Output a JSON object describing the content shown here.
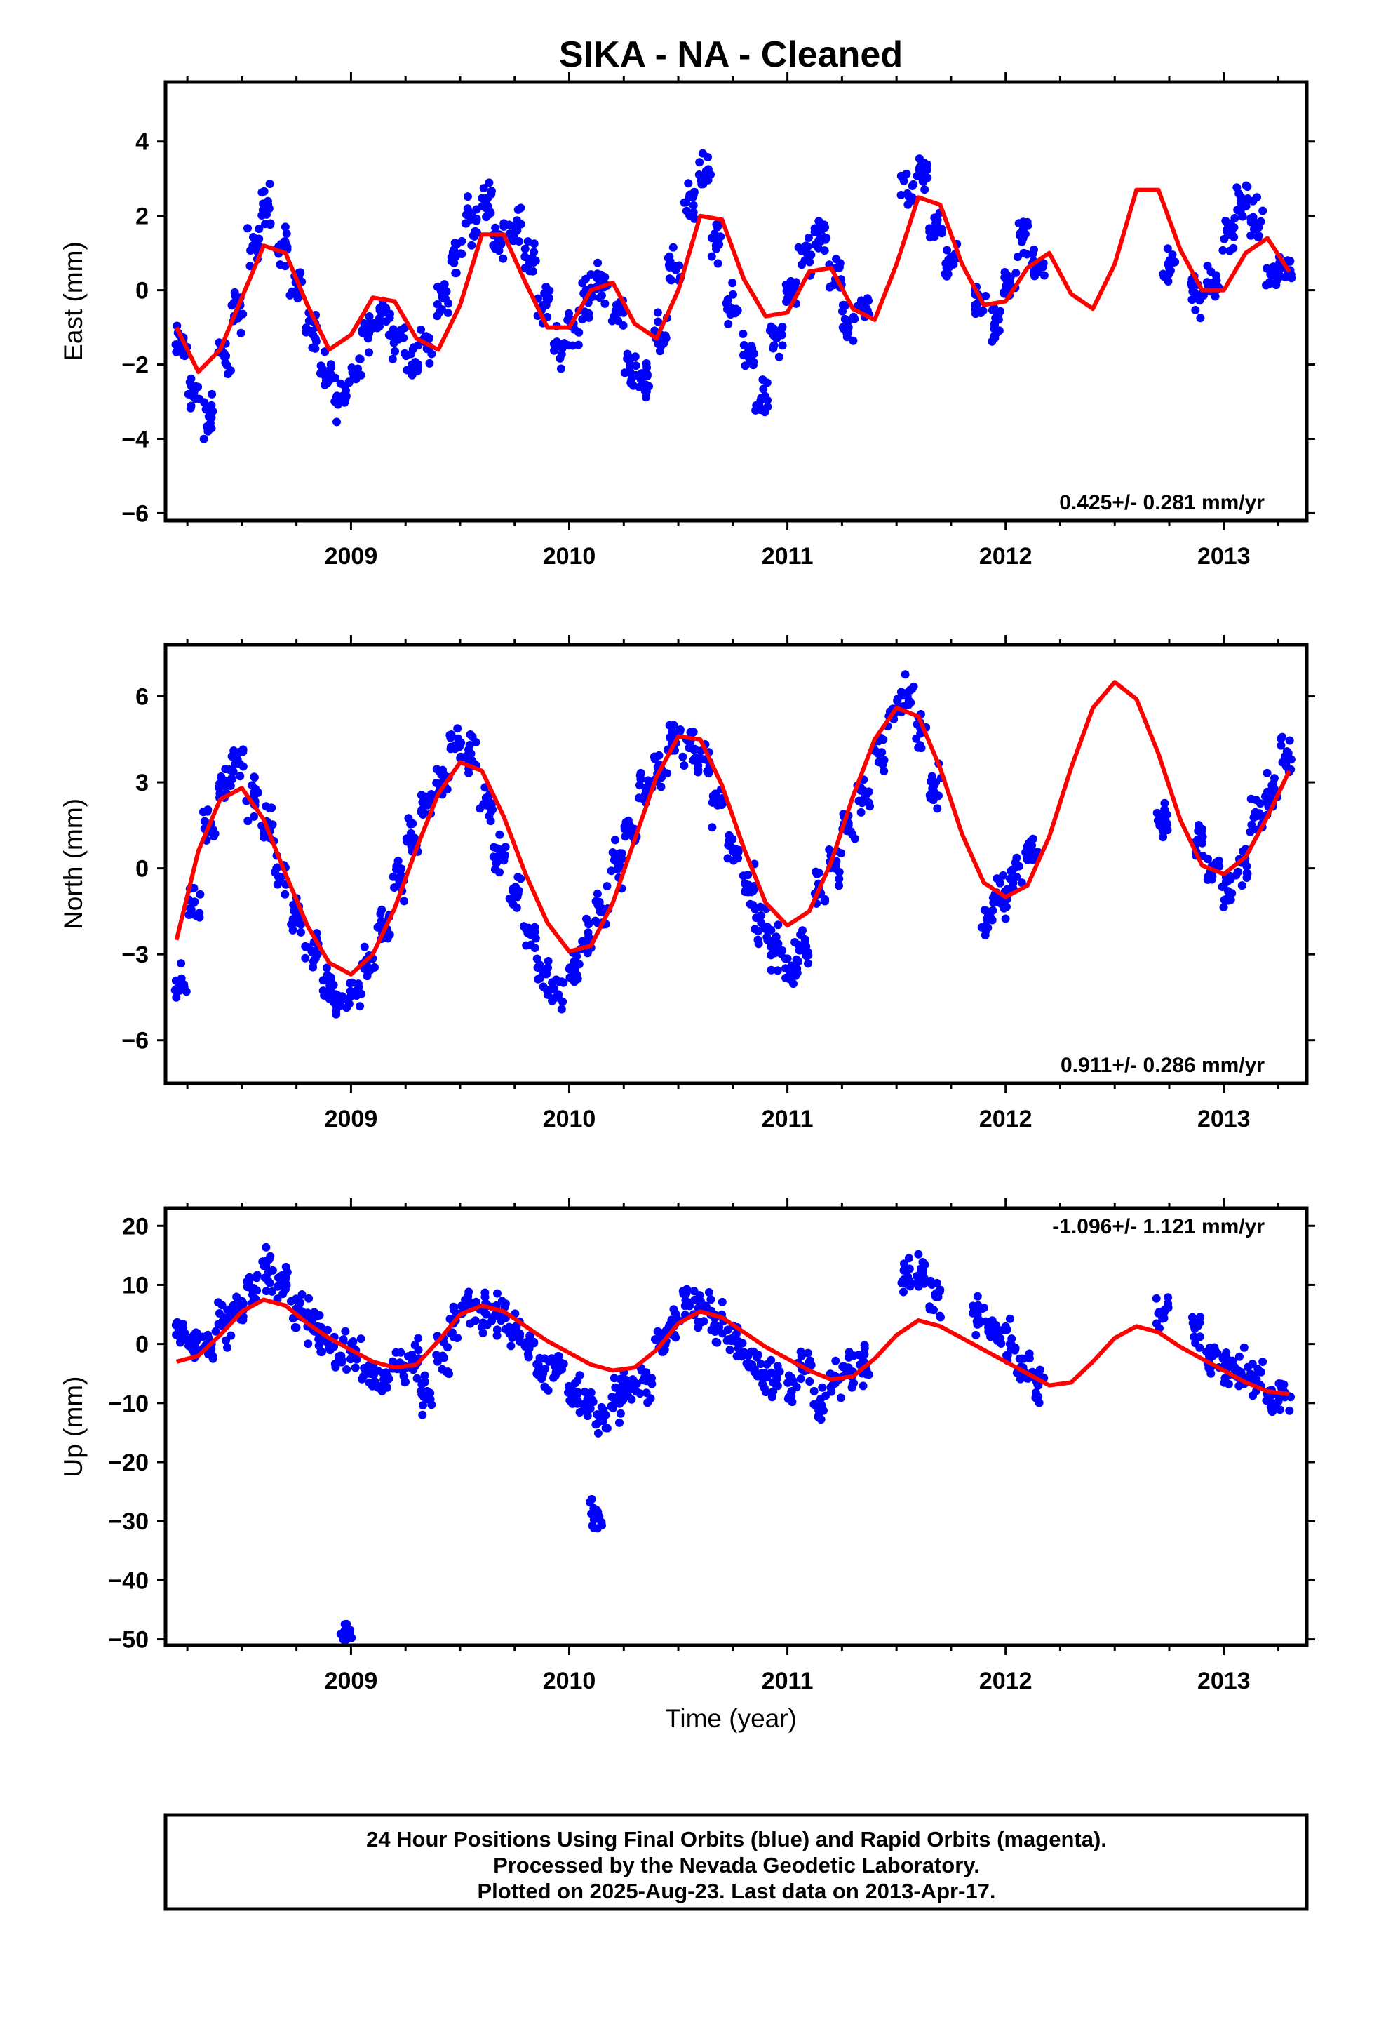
{
  "title": "SIKA  - NA - Cleaned",
  "xlabel": "Time (year)",
  "footer": [
    "24 Hour Positions Using Final Orbits (blue) and Rapid Orbits (magenta).",
    "Processed by the Nevada Geodetic Laboratory.",
    "Plotted on 2025-Aug-23. Last data on 2013-Apr-17."
  ],
  "colors": {
    "points": "#0000ff",
    "model": "#ff0000",
    "frame": "#000000"
  },
  "chart_data": [
    {
      "type": "scatter",
      "ylabel": "East (mm)",
      "rate_text": "0.425+/- 0.281 mm/yr",
      "xlim": [
        2008.15,
        2013.38
      ],
      "ylim": [
        -6.2,
        5.6
      ],
      "yticks": [
        -6,
        -4,
        -2,
        0,
        2,
        4
      ],
      "xticks": [
        2009,
        2010,
        2011,
        2012,
        2013
      ],
      "series": [
        {
          "kind": "points",
          "x": [
            2008.22,
            2008.28,
            2008.35,
            2008.42,
            2008.48,
            2008.55,
            2008.62,
            2008.68,
            2008.75,
            2008.82,
            2008.88,
            2008.95,
            2009.02,
            2009.08,
            2009.15,
            2009.22,
            2009.28,
            2009.35,
            2009.42,
            2009.48,
            2009.55,
            2009.62,
            2009.68,
            2009.75,
            2009.82,
            2009.88,
            2009.95,
            2010.02,
            2010.08,
            2010.15,
            2010.22,
            2010.28,
            2010.35,
            2010.42,
            2010.48,
            2010.55,
            2010.62,
            2010.68,
            2010.75,
            2010.82,
            2010.88,
            2010.95,
            2011.02,
            2011.08,
            2011.15,
            2011.22,
            2011.28,
            2011.35,
            2011.55,
            2011.62,
            2011.68,
            2011.75,
            2011.88,
            2011.95,
            2012.02,
            2012.08,
            2012.15,
            2012.75,
            2012.88,
            2012.95,
            2013.02,
            2013.08,
            2013.15,
            2013.22,
            2013.28
          ],
          "y": [
            -1.5,
            -2.8,
            -3.4,
            -1.8,
            -0.6,
            1.2,
            2.3,
            1.2,
            0.2,
            -1.1,
            -2.3,
            -2.9,
            -2.2,
            -1.0,
            -0.6,
            -1.3,
            -2.0,
            -1.5,
            -0.2,
            0.9,
            1.9,
            2.4,
            1.5,
            1.7,
            0.8,
            -0.4,
            -1.5,
            -0.9,
            -0.2,
            0.2,
            -0.6,
            -2.0,
            -2.6,
            -1.2,
            0.6,
            2.5,
            3.1,
            1.3,
            -0.5,
            -1.7,
            -2.9,
            -1.3,
            -0.2,
            0.8,
            1.5,
            0.3,
            -1.0,
            -0.4,
            2.6,
            3.0,
            1.8,
            0.7,
            -0.3,
            -0.9,
            0.2,
            1.4,
            0.7,
            0.6,
            -0.2,
            0.2,
            1.5,
            2.4,
            1.8,
            0.4,
            0.6
          ]
        },
        {
          "kind": "model",
          "x": [
            2008.2,
            2008.3,
            2008.4,
            2008.5,
            2008.6,
            2008.7,
            2008.8,
            2008.9,
            2009.0,
            2009.1,
            2009.2,
            2009.3,
            2009.4,
            2009.5,
            2009.6,
            2009.7,
            2009.8,
            2009.9,
            2010.0,
            2010.1,
            2010.2,
            2010.3,
            2010.4,
            2010.5,
            2010.6,
            2010.7,
            2010.8,
            2010.9,
            2011.0,
            2011.1,
            2011.2,
            2011.3,
            2011.4,
            2011.5,
            2011.6,
            2011.7,
            2011.8,
            2011.9,
            2012.0,
            2012.1,
            2012.2,
            2012.3,
            2012.4,
            2012.5,
            2012.6,
            2012.7,
            2012.8,
            2012.9,
            2013.0,
            2013.1,
            2013.2,
            2013.3
          ],
          "y": [
            -1.0,
            -2.2,
            -1.6,
            -0.2,
            1.2,
            1.0,
            -0.4,
            -1.6,
            -1.2,
            -0.2,
            -0.3,
            -1.3,
            -1.6,
            -0.4,
            1.5,
            1.5,
            0.2,
            -1.0,
            -1.0,
            0.0,
            0.2,
            -0.9,
            -1.3,
            0.0,
            2.0,
            1.9,
            0.3,
            -0.7,
            -0.6,
            0.5,
            0.6,
            -0.5,
            -0.8,
            0.7,
            2.5,
            2.3,
            0.7,
            -0.4,
            -0.3,
            0.6,
            1.0,
            -0.1,
            -0.5,
            0.7,
            2.7,
            2.7,
            1.1,
            0.0,
            0.0,
            1.0,
            1.4,
            0.5
          ]
        }
      ]
    },
    {
      "type": "scatter",
      "ylabel": "North (mm)",
      "rate_text": "0.911+/- 0.286 mm/yr",
      "xlim": [
        2008.15,
        2013.38
      ],
      "ylim": [
        -7.5,
        7.8
      ],
      "yticks": [
        -6,
        -3,
        0,
        3,
        6
      ],
      "xticks": [
        2009,
        2010,
        2011,
        2012,
        2013
      ],
      "series": [
        {
          "kind": "points",
          "x": [
            2008.22,
            2008.28,
            2008.35,
            2008.42,
            2008.48,
            2008.55,
            2008.62,
            2008.68,
            2008.75,
            2008.82,
            2008.88,
            2008.95,
            2009.02,
            2009.08,
            2009.15,
            2009.22,
            2009.28,
            2009.35,
            2009.42,
            2009.48,
            2009.55,
            2009.62,
            2009.68,
            2009.75,
            2009.82,
            2009.88,
            2009.95,
            2010.02,
            2010.08,
            2010.15,
            2010.22,
            2010.28,
            2010.35,
            2010.42,
            2010.48,
            2010.55,
            2010.62,
            2010.68,
            2010.75,
            2010.82,
            2010.88,
            2010.95,
            2011.02,
            2011.08,
            2011.15,
            2011.22,
            2011.28,
            2011.35,
            2011.42,
            2011.48,
            2011.55,
            2011.62,
            2011.68,
            2011.92,
            2011.98,
            2012.05,
            2012.12,
            2012.72,
            2012.88,
            2012.95,
            2013.02,
            2013.08,
            2013.15,
            2013.22,
            2013.28
          ],
          "y": [
            -4.2,
            -1.2,
            1.5,
            3.0,
            3.8,
            2.4,
            1.5,
            -0.3,
            -1.6,
            -2.9,
            -3.9,
            -4.5,
            -4.3,
            -3.2,
            -1.9,
            -0.4,
            1.0,
            2.2,
            3.0,
            4.3,
            4.0,
            2.2,
            0.4,
            -0.8,
            -2.3,
            -3.6,
            -4.4,
            -3.5,
            -2.6,
            -1.4,
            0.2,
            1.3,
            2.8,
            3.5,
            4.6,
            4.2,
            3.8,
            2.2,
            0.6,
            -0.7,
            -1.9,
            -2.8,
            -3.4,
            -2.7,
            -0.9,
            0.0,
            1.5,
            2.7,
            4.0,
            5.4,
            6.0,
            4.8,
            3.0,
            -1.6,
            -1.0,
            -0.3,
            0.8,
            1.8,
            1.0,
            0.0,
            -0.8,
            0.2,
            1.9,
            2.6,
            3.9
          ]
        },
        {
          "kind": "model",
          "x": [
            2008.2,
            2008.3,
            2008.4,
            2008.5,
            2008.6,
            2008.7,
            2008.8,
            2008.9,
            2009.0,
            2009.1,
            2009.2,
            2009.3,
            2009.4,
            2009.5,
            2009.6,
            2009.7,
            2009.8,
            2009.9,
            2010.0,
            2010.1,
            2010.2,
            2010.3,
            2010.4,
            2010.5,
            2010.6,
            2010.7,
            2010.8,
            2010.9,
            2011.0,
            2011.1,
            2011.2,
            2011.3,
            2011.4,
            2011.5,
            2011.6,
            2011.7,
            2011.8,
            2011.9,
            2012.0,
            2012.1,
            2012.2,
            2012.3,
            2012.4,
            2012.5,
            2012.6,
            2012.7,
            2012.8,
            2012.9,
            2013.0,
            2013.1,
            2013.2,
            2013.3
          ],
          "y": [
            -2.5,
            0.6,
            2.4,
            2.8,
            1.7,
            -0.2,
            -2.0,
            -3.3,
            -3.7,
            -3.0,
            -1.4,
            0.7,
            2.6,
            3.7,
            3.4,
            1.8,
            -0.2,
            -1.9,
            -2.9,
            -2.7,
            -1.2,
            1.0,
            3.2,
            4.6,
            4.5,
            2.9,
            0.7,
            -1.2,
            -2.0,
            -1.5,
            0.2,
            2.5,
            4.5,
            5.6,
            5.3,
            3.5,
            1.2,
            -0.5,
            -1.0,
            -0.6,
            1.1,
            3.5,
            5.6,
            6.5,
            5.9,
            4.0,
            1.7,
            0.1,
            -0.2,
            0.4,
            1.8,
            3.4
          ]
        }
      ]
    },
    {
      "type": "scatter",
      "ylabel": "Up (mm)",
      "rate_text": "-1.096+/- 1.121 mm/yr",
      "xlim": [
        2008.15,
        2013.38
      ],
      "ylim": [
        -51,
        23
      ],
      "yticks": [
        -50,
        -40,
        -30,
        -20,
        -10,
        0,
        10,
        20
      ],
      "xticks": [
        2009,
        2010,
        2011,
        2012,
        2013
      ],
      "series": [
        {
          "kind": "points",
          "x": [
            2008.22,
            2008.28,
            2008.35,
            2008.42,
            2008.48,
            2008.55,
            2008.62,
            2008.68,
            2008.75,
            2008.82,
            2008.88,
            2008.95,
            2008.98,
            2009.02,
            2009.08,
            2009.15,
            2009.22,
            2009.28,
            2009.35,
            2009.42,
            2009.48,
            2009.55,
            2009.62,
            2009.68,
            2009.75,
            2009.82,
            2009.88,
            2009.95,
            2010.02,
            2010.08,
            2010.12,
            2010.15,
            2010.22,
            2010.28,
            2010.35,
            2010.42,
            2010.48,
            2010.55,
            2010.62,
            2010.68,
            2010.75,
            2010.82,
            2010.88,
            2010.95,
            2011.02,
            2011.08,
            2011.15,
            2011.22,
            2011.28,
            2011.35,
            2011.55,
            2011.62,
            2011.68,
            2011.88,
            2011.95,
            2012.02,
            2012.08,
            2012.15,
            2012.72,
            2012.88,
            2012.95,
            2013.02,
            2013.08,
            2013.15,
            2013.22,
            2013.28
          ],
          "y": [
            2,
            0,
            -1,
            3,
            6,
            9,
            12,
            10,
            6,
            4,
            1,
            -2,
            -50,
            -2,
            -5,
            -6,
            -4,
            -3,
            -8,
            -2,
            4,
            7,
            5,
            5,
            2,
            0,
            -5,
            -4,
            -8,
            -10,
            -29,
            -13,
            -9,
            -7,
            -6,
            0,
            3,
            7,
            6,
            3,
            1,
            -2,
            -5,
            -6,
            -8,
            -4,
            -10,
            -6,
            -4,
            -3,
            11,
            12,
            8,
            4,
            2,
            0,
            -4,
            -7,
            5,
            3,
            -2,
            -4,
            -5,
            -6,
            -10,
            -9
          ]
        },
        {
          "kind": "model",
          "x": [
            2008.2,
            2008.3,
            2008.4,
            2008.5,
            2008.6,
            2008.7,
            2008.8,
            2008.9,
            2009.0,
            2009.1,
            2009.2,
            2009.3,
            2009.4,
            2009.5,
            2009.6,
            2009.7,
            2009.8,
            2009.9,
            2010.0,
            2010.1,
            2010.2,
            2010.3,
            2010.4,
            2010.5,
            2010.6,
            2010.7,
            2010.8,
            2010.9,
            2011.0,
            2011.1,
            2011.2,
            2011.3,
            2011.4,
            2011.5,
            2011.6,
            2011.7,
            2011.8,
            2011.9,
            2012.0,
            2012.1,
            2012.2,
            2012.3,
            2012.4,
            2012.5,
            2012.6,
            2012.7,
            2012.8,
            2012.9,
            2013.0,
            2013.1,
            2013.2,
            2013.3
          ],
          "y": [
            -3.0,
            -2.0,
            1.5,
            5.5,
            7.5,
            6.5,
            3.5,
            1.0,
            -1.0,
            -3.0,
            -4.0,
            -3.5,
            0.5,
            5.0,
            6.5,
            5.5,
            3.0,
            0.5,
            -1.5,
            -3.5,
            -4.5,
            -4.0,
            -1.0,
            3.5,
            5.5,
            4.5,
            2.0,
            -0.5,
            -2.5,
            -4.5,
            -6.0,
            -5.5,
            -2.5,
            1.5,
            4.0,
            3.0,
            1.0,
            -1.0,
            -3.0,
            -5.0,
            -7.0,
            -6.5,
            -3.0,
            1.0,
            3.0,
            2.0,
            -0.5,
            -2.5,
            -4.5,
            -6.5,
            -8.0,
            -8.5
          ]
        }
      ]
    }
  ]
}
